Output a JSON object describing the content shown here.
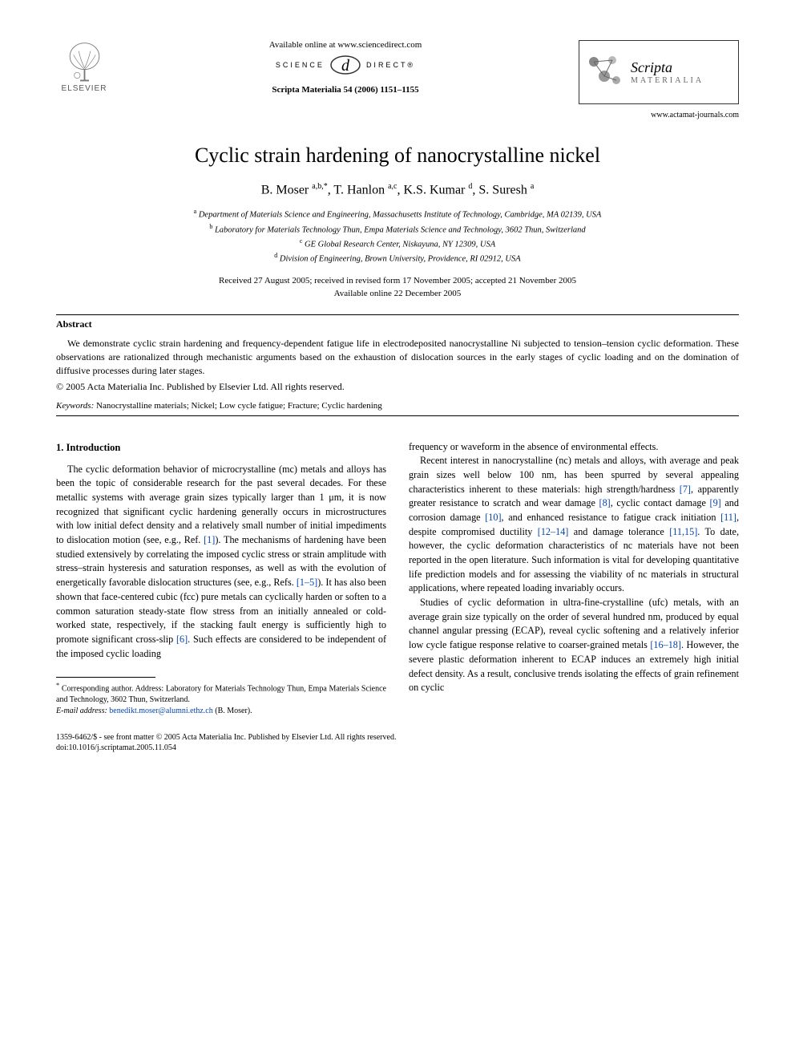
{
  "header": {
    "elsevier_label": "ELSEVIER",
    "available_online": "Available online at www.sciencedirect.com",
    "science_label_left": "SCIENCE",
    "science_at": "d",
    "science_label_right": "DIRECT®",
    "journal_ref": "Scripta Materialia 54 (2006) 1151–1155",
    "scripta_name": "Scripta",
    "scripta_sub": "MATERIALIA",
    "journal_url": "www.actamat-journals.com"
  },
  "article": {
    "title": "Cyclic strain hardening of nanocrystalline nickel",
    "authors_html": "B. Moser <sup>a,b,*</sup>, T. Hanlon <sup>a,c</sup>, K.S. Kumar <sup>d</sup>, S. Suresh <sup>a</sup>",
    "affiliations": {
      "a": "Department of Materials Science and Engineering, Massachusetts Institute of Technology, Cambridge, MA 02139, USA",
      "b": "Laboratory for Materials Technology Thun, Empa Materials Science and Technology, 3602 Thun, Switzerland",
      "c": "GE Global Research Center, Niskayuna, NY 12309, USA",
      "d": "Division of Engineering, Brown University, Providence, RI 02912, USA"
    },
    "dates_line1": "Received 27 August 2005; received in revised form 17 November 2005; accepted 21 November 2005",
    "dates_line2": "Available online 22 December 2005"
  },
  "abstract": {
    "heading": "Abstract",
    "text": "We demonstrate cyclic strain hardening and frequency-dependent fatigue life in electrodeposited nanocrystalline Ni subjected to tension–tension cyclic deformation. These observations are rationalized through mechanistic arguments based on the exhaustion of dislocation sources in the early stages of cyclic loading and on the domination of diffusive processes during later stages.",
    "copyright": "© 2005 Acta Materialia Inc. Published by Elsevier Ltd. All rights reserved.",
    "keywords_label": "Keywords:",
    "keywords": "Nanocrystalline materials; Nickel; Low cycle fatigue; Fracture; Cyclic hardening"
  },
  "body": {
    "section1_heading": "1. Introduction",
    "col1_p1_a": "The cyclic deformation behavior of microcrystalline (mc) metals and alloys has been the topic of considerable research for the past several decades. For these metallic systems with average grain sizes typically larger than 1 μm, it is now recognized that significant cyclic hardening generally occurs in microstructures with low initial defect density and a relatively small number of initial impediments to dislocation motion (see, e.g., Ref. ",
    "ref1": "[1]",
    "col1_p1_b": "). The mechanisms of hardening have been studied extensively by correlating the imposed cyclic stress or strain amplitude with stress–strain hysteresis and saturation responses, as well as with the evolution of energetically favorable dislocation structures (see, e.g., Refs. ",
    "ref1_5": "[1–5]",
    "col1_p1_c": "). It has also been shown that face-centered cubic (fcc) pure metals can cyclically harden or soften to a common saturation steady-state flow stress from an initially annealed or cold-worked state, respectively, if the stacking fault energy is sufficiently high to promote significant cross-slip ",
    "ref6": "[6]",
    "col1_p1_d": ". Such effects are considered to be independent of the imposed cyclic loading",
    "col2_p1": "frequency or waveform in the absence of environmental effects.",
    "col2_p2_a": "Recent interest in nanocrystalline (nc) metals and alloys, with average and peak grain sizes well below 100 nm, has been spurred by several appealing characteristics inherent to these materials: high strength/hardness ",
    "ref7": "[7]",
    "col2_p2_b": ", apparently greater resistance to scratch and wear damage ",
    "ref8": "[8]",
    "col2_p2_c": ", cyclic contact damage ",
    "ref9": "[9]",
    "col2_p2_d": " and corrosion damage ",
    "ref10": "[10]",
    "col2_p2_e": ", and enhanced resistance to fatigue crack initiation ",
    "ref11": "[11]",
    "col2_p2_f": ", despite compromised ductility ",
    "ref12_14": "[12–14]",
    "col2_p2_g": " and damage tolerance ",
    "ref11_15": "[11,15]",
    "col2_p2_h": ". To date, however, the cyclic deformation characteristics of nc materials have not been reported in the open literature. Such information is vital for developing quantitative life prediction models and for assessing the viability of nc materials in structural applications, where repeated loading invariably occurs.",
    "col2_p3_a": "Studies of cyclic deformation in ultra-fine-crystalline (ufc) metals, with an average grain size typically on the order of several hundred nm, produced by equal channel angular pressing (ECAP), reveal cyclic softening and a relatively inferior low cycle fatigue response relative to coarser-grained metals ",
    "ref16_18": "[16–18]",
    "col2_p3_b": ". However, the severe plastic deformation inherent to ECAP induces an extremely high initial defect density. As a result, conclusive trends isolating the effects of grain refinement on cyclic"
  },
  "footnote": {
    "corresponding": "Corresponding author. Address: Laboratory for Materials Technology Thun, Empa Materials Science and Technology, 3602 Thun, Switzerland.",
    "email_label": "E-mail address:",
    "email": "benedikt.moser@alumni.ethz.ch",
    "email_suffix": "(B. Moser)."
  },
  "footer": {
    "line1": "1359-6462/$ - see front matter © 2005 Acta Materialia Inc. Published by Elsevier Ltd. All rights reserved.",
    "line2": "doi:10.1016/j.scriptamat.2005.11.054"
  },
  "colors": {
    "link": "#0645ad",
    "text": "#000000",
    "bg": "#ffffff",
    "muted": "#555555"
  }
}
